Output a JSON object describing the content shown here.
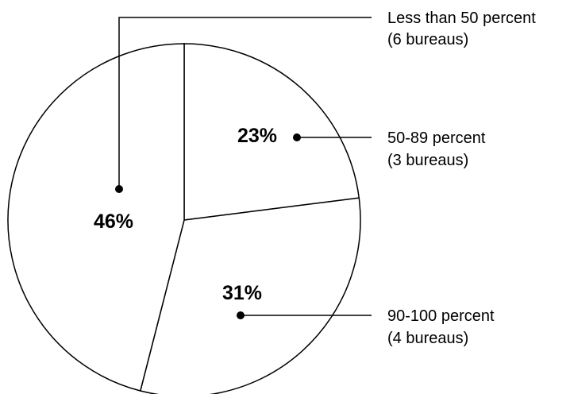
{
  "chart_data": {
    "type": "pie",
    "slices": [
      {
        "category": "Less than 50 percent",
        "count": "(6 bureaus)",
        "value": 46,
        "label": "46%"
      },
      {
        "category": "50-89 percent",
        "count": "(3 bureaus)",
        "value": 23,
        "label": "23%"
      },
      {
        "category": "90-100 percent",
        "count": "(4 bureaus)",
        "value": 31,
        "label": "31%"
      }
    ],
    "legend": "callouts-right",
    "colors": {
      "fill": "#ffffff",
      "stroke": "#000000"
    }
  }
}
